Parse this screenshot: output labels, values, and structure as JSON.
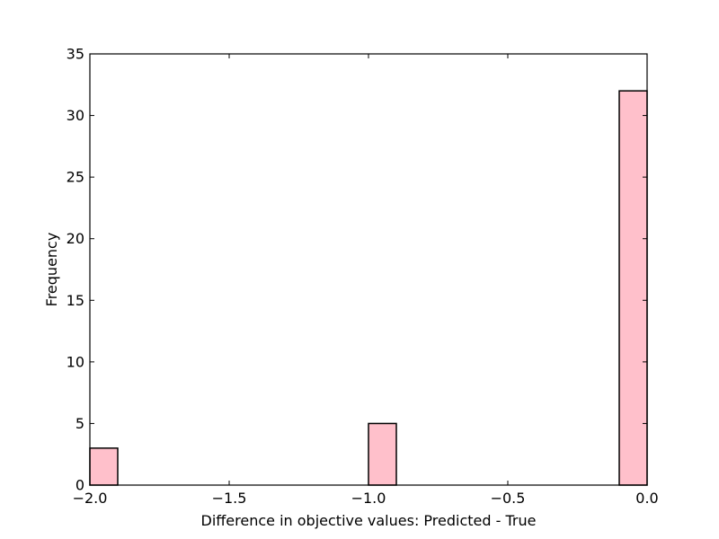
{
  "chart_data": {
    "type": "bar",
    "title": "",
    "xlabel": "Difference in objective values: Predicted - True",
    "ylabel": "Frequency",
    "xlim": [
      -2.0,
      0.0
    ],
    "ylim": [
      0,
      35
    ],
    "bin_width": 0.1,
    "bars": [
      {
        "x_start": -2.0,
        "x_end": -1.9,
        "value": 3
      },
      {
        "x_start": -1.0,
        "x_end": -0.9,
        "value": 5
      },
      {
        "x_start": -0.1,
        "x_end": 0.0,
        "value": 32
      }
    ],
    "xticks": [
      {
        "value": -2.0,
        "label": "−2.0"
      },
      {
        "value": -1.5,
        "label": "−1.5"
      },
      {
        "value": -1.0,
        "label": "−1.0"
      },
      {
        "value": -0.5,
        "label": "−0.5"
      },
      {
        "value": 0.0,
        "label": "0.0"
      }
    ],
    "yticks": [
      {
        "value": 0,
        "label": "0"
      },
      {
        "value": 5,
        "label": "5"
      },
      {
        "value": 10,
        "label": "10"
      },
      {
        "value": 15,
        "label": "15"
      },
      {
        "value": 20,
        "label": "20"
      },
      {
        "value": 25,
        "label": "25"
      },
      {
        "value": 30,
        "label": "30"
      },
      {
        "value": 35,
        "label": "35"
      }
    ],
    "grid": false,
    "bar_color": "#ffc0cb",
    "edge_color": "#000000"
  }
}
